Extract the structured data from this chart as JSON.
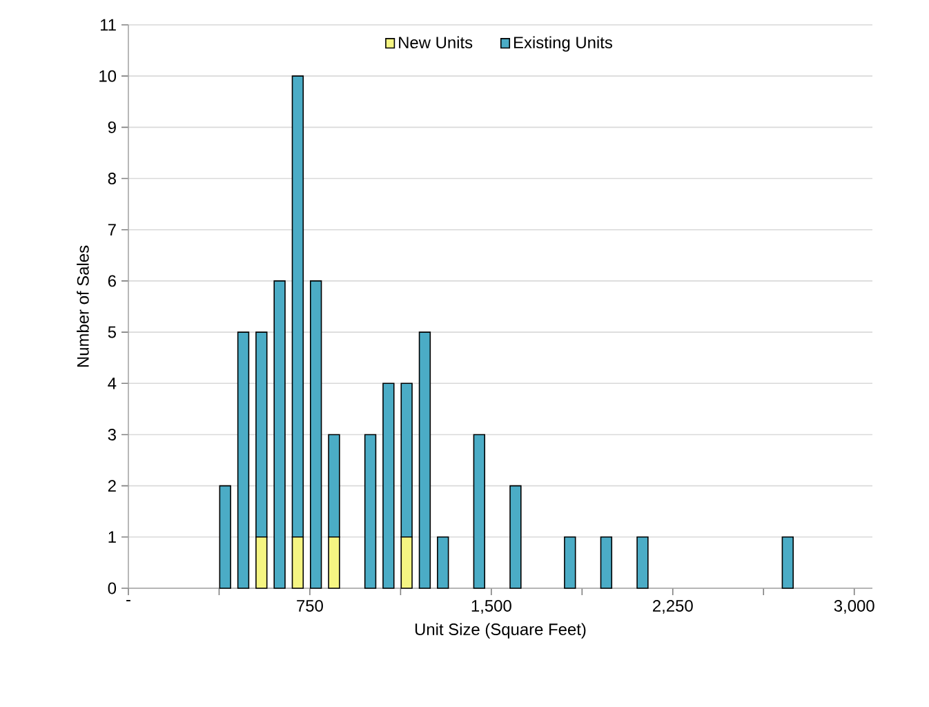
{
  "chart_data": {
    "type": "bar",
    "stacked": true,
    "xlabel": "Unit Size (Square Feet)",
    "ylabel": "Number of Sales",
    "x": [
      400,
      475,
      550,
      625,
      700,
      775,
      850,
      1000,
      1075,
      1150,
      1225,
      1300,
      1450,
      1600,
      1825,
      1975,
      2125,
      2725
    ],
    "series": [
      {
        "name": "New Units",
        "color": "#f5f582",
        "values": [
          0,
          0,
          1,
          0,
          1,
          0,
          1,
          0,
          0,
          1,
          0,
          0,
          0,
          0,
          0,
          0,
          0,
          0
        ]
      },
      {
        "name": "Existing Units",
        "color": "#4bacc6",
        "values": [
          2,
          5,
          4,
          6,
          9,
          6,
          2,
          3,
          4,
          3,
          5,
          1,
          3,
          2,
          1,
          1,
          1,
          1
        ]
      }
    ],
    "xlim": [
      0,
      3075
    ],
    "ylim": [
      0,
      11
    ],
    "xticks": [
      {
        "value": 0,
        "label": "-"
      },
      {
        "value": 375,
        "label": null
      },
      {
        "value": 750,
        "label": "750"
      },
      {
        "value": 1125,
        "label": null
      },
      {
        "value": 1500,
        "label": "1,500"
      },
      {
        "value": 1875,
        "label": null
      },
      {
        "value": 2250,
        "label": "2,250"
      },
      {
        "value": 2625,
        "label": null
      },
      {
        "value": 3000,
        "label": "3,000"
      }
    ],
    "yticks": [
      0,
      1,
      2,
      3,
      4,
      5,
      6,
      7,
      8,
      9,
      10,
      11
    ],
    "grid": "y",
    "legend": "top"
  }
}
